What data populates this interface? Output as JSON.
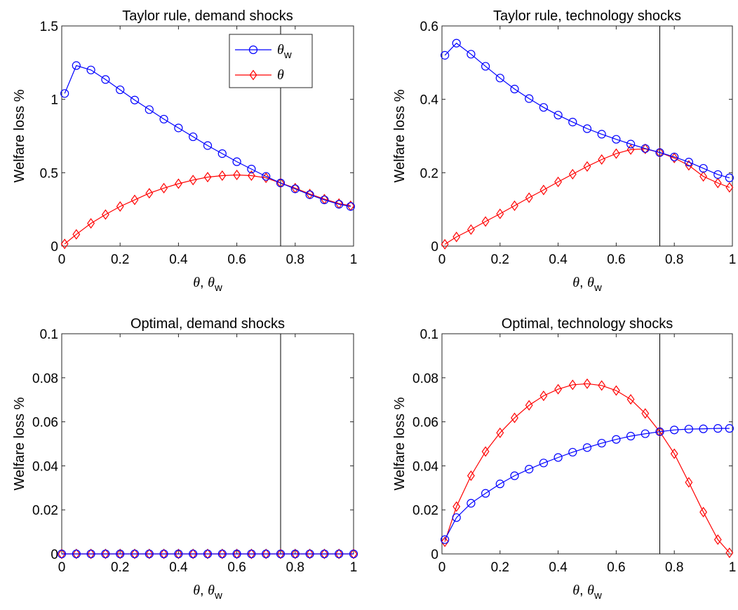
{
  "chart_data": [
    {
      "type": "line",
      "title": "Taylor rule, demand shocks",
      "xlabel": "θ, θw",
      "ylabel": "Welfare loss %",
      "xlim": [
        0,
        1
      ],
      "ylim": [
        0,
        1.5
      ],
      "xticks": [
        0,
        0.2,
        0.4,
        0.6,
        0.8,
        1
      ],
      "xtick_labels": [
        "0",
        "0.2",
        "0.4",
        "0.6",
        "0.8",
        "1"
      ],
      "yticks": [
        0,
        0.5,
        1,
        1.5
      ],
      "ytick_labels": [
        "0",
        "0.5",
        "1",
        "1.5"
      ],
      "vline": 0.75,
      "legend": {
        "placement": "top-right",
        "entries": [
          "θw",
          "θ"
        ]
      },
      "x": [
        0.01,
        0.05,
        0.1,
        0.15,
        0.2,
        0.25,
        0.3,
        0.35,
        0.4,
        0.45,
        0.5,
        0.55,
        0.6,
        0.65,
        0.7,
        0.75,
        0.8,
        0.85,
        0.9,
        0.95,
        0.99
      ],
      "series": [
        {
          "name": "θw",
          "color": "#0000ff",
          "marker": "circle",
          "values": [
            1.04,
            1.23,
            1.2,
            1.135,
            1.065,
            0.995,
            0.93,
            0.865,
            0.805,
            0.745,
            0.685,
            0.63,
            0.575,
            0.525,
            0.475,
            0.43,
            0.39,
            0.35,
            0.315,
            0.285,
            0.27
          ]
        },
        {
          "name": "θ",
          "color": "#ff0000",
          "marker": "diamond",
          "values": [
            0.015,
            0.08,
            0.155,
            0.215,
            0.27,
            0.315,
            0.36,
            0.395,
            0.425,
            0.45,
            0.47,
            0.48,
            0.485,
            0.48,
            0.465,
            0.43,
            0.395,
            0.355,
            0.32,
            0.29,
            0.275
          ]
        }
      ]
    },
    {
      "type": "line",
      "title": "Taylor rule, technology shocks",
      "xlabel": "θ, θw",
      "ylabel": "Welfare loss %",
      "xlim": [
        0,
        1
      ],
      "ylim": [
        0,
        0.6
      ],
      "xticks": [
        0,
        0.2,
        0.4,
        0.6,
        0.8,
        1
      ],
      "xtick_labels": [
        "0",
        "0.2",
        "0.4",
        "0.6",
        "0.8",
        "1"
      ],
      "yticks": [
        0,
        0.2,
        0.4,
        0.6
      ],
      "ytick_labels": [
        "0",
        "0.2",
        "0.4",
        "0.6"
      ],
      "vline": 0.75,
      "x": [
        0.01,
        0.05,
        0.1,
        0.15,
        0.2,
        0.25,
        0.3,
        0.35,
        0.4,
        0.45,
        0.5,
        0.55,
        0.6,
        0.65,
        0.7,
        0.75,
        0.8,
        0.85,
        0.9,
        0.95,
        0.99
      ],
      "series": [
        {
          "name": "θw",
          "color": "#0000ff",
          "marker": "circle",
          "values": [
            0.52,
            0.553,
            0.523,
            0.49,
            0.458,
            0.428,
            0.402,
            0.378,
            0.357,
            0.338,
            0.32,
            0.305,
            0.291,
            0.278,
            0.266,
            0.255,
            0.243,
            0.229,
            0.212,
            0.195,
            0.186
          ]
        },
        {
          "name": "θ",
          "color": "#ff0000",
          "marker": "diamond",
          "values": [
            0.005,
            0.025,
            0.045,
            0.067,
            0.088,
            0.11,
            0.132,
            0.153,
            0.175,
            0.196,
            0.217,
            0.236,
            0.252,
            0.263,
            0.265,
            0.255,
            0.24,
            0.22,
            0.19,
            0.172,
            0.16
          ]
        }
      ]
    },
    {
      "type": "line",
      "title": "Optimal, demand shocks",
      "xlabel": "θ, θw",
      "ylabel": "Welfare loss %",
      "xlim": [
        0,
        1
      ],
      "ylim": [
        0,
        0.1
      ],
      "xticks": [
        0,
        0.2,
        0.4,
        0.6,
        0.8,
        1
      ],
      "xtick_labels": [
        "0",
        "0.2",
        "0.4",
        "0.6",
        "0.8",
        "1"
      ],
      "yticks": [
        0,
        0.02,
        0.04,
        0.06,
        0.08,
        0.1
      ],
      "ytick_labels": [
        "0",
        "0.02",
        "0.04",
        "0.06",
        "0.08",
        "0.1"
      ],
      "vline": 0.75,
      "x": [
        0.0,
        0.05,
        0.1,
        0.15,
        0.2,
        0.25,
        0.3,
        0.35,
        0.4,
        0.45,
        0.5,
        0.55,
        0.6,
        0.65,
        0.7,
        0.75,
        0.8,
        0.85,
        0.9,
        0.95,
        1.0
      ],
      "series": [
        {
          "name": "θw",
          "color": "#0000ff",
          "marker": "circle",
          "values": [
            0,
            0,
            0,
            0,
            0,
            0,
            0,
            0,
            0,
            0,
            0,
            0,
            0,
            0,
            0,
            0,
            0,
            0,
            0,
            0,
            0
          ]
        },
        {
          "name": "θ",
          "color": "#ff0000",
          "marker": "diamond",
          "values": [
            0,
            0,
            0,
            0,
            0,
            0,
            0,
            0,
            0,
            0,
            0,
            0,
            0,
            0,
            0,
            0,
            0,
            0,
            0,
            0,
            0
          ]
        }
      ]
    },
    {
      "type": "line",
      "title": "Optimal, technology shocks",
      "xlabel": "θ, θw",
      "ylabel": "Welfare loss %",
      "xlim": [
        0,
        1
      ],
      "ylim": [
        0,
        0.1
      ],
      "xticks": [
        0,
        0.2,
        0.4,
        0.6,
        0.8,
        1
      ],
      "xtick_labels": [
        "0",
        "0.2",
        "0.4",
        "0.6",
        "0.8",
        "1"
      ],
      "yticks": [
        0,
        0.02,
        0.04,
        0.06,
        0.08,
        0.1
      ],
      "ytick_labels": [
        "0",
        "0.02",
        "0.04",
        "0.06",
        "0.08",
        "0.1"
      ],
      "vline": 0.75,
      "x": [
        0.01,
        0.05,
        0.1,
        0.15,
        0.2,
        0.25,
        0.3,
        0.35,
        0.4,
        0.45,
        0.5,
        0.55,
        0.6,
        0.65,
        0.7,
        0.75,
        0.8,
        0.85,
        0.9,
        0.95,
        0.99
      ],
      "series": [
        {
          "name": "θw",
          "color": "#0000ff",
          "marker": "circle",
          "values": [
            0.0065,
            0.0165,
            0.023,
            0.0275,
            0.0318,
            0.0355,
            0.0385,
            0.0413,
            0.0438,
            0.0462,
            0.0483,
            0.0503,
            0.052,
            0.0535,
            0.0546,
            0.0555,
            0.0563,
            0.0567,
            0.0568,
            0.057,
            0.057
          ]
        },
        {
          "name": "θ",
          "color": "#ff0000",
          "marker": "diamond",
          "values": [
            0.0055,
            0.0215,
            0.0355,
            0.0465,
            0.055,
            0.0618,
            0.0675,
            0.0718,
            0.0748,
            0.0768,
            0.0773,
            0.0765,
            0.0742,
            0.0702,
            0.0638,
            0.0555,
            0.0455,
            0.0325,
            0.019,
            0.0065,
            0.0005
          ]
        }
      ]
    }
  ]
}
